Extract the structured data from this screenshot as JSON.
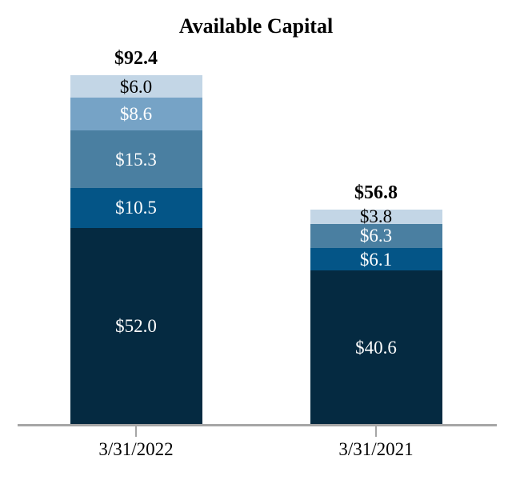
{
  "chart_data": {
    "type": "bar",
    "stacked": true,
    "title": "Available Capital",
    "categories": [
      "3/31/2022",
      "3/31/2021"
    ],
    "value_unit": "$ billions shown as labels",
    "legend": "none",
    "grid": "off",
    "axis_color": "#a6a6a6",
    "ylim": [
      0,
      100
    ],
    "totals": [
      92.4,
      56.8
    ],
    "total_labels": [
      "$92.4",
      "$56.8"
    ],
    "stacks": [
      {
        "category": "3/31/2022",
        "total": 92.4,
        "total_label": "$92.4",
        "segments": [
          {
            "value": 52.0,
            "label": "$52.0",
            "color": "#052a41",
            "label_color": "#ffffff"
          },
          {
            "value": 10.5,
            "label": "$10.5",
            "color": "#045587",
            "label_color": "#ffffff"
          },
          {
            "value": 15.3,
            "label": "$15.3",
            "color": "#4a7fa1",
            "label_color": "#ffffff"
          },
          {
            "value": 8.6,
            "label": "$8.6",
            "color": "#76a3c6",
            "label_color": "#ffffff"
          },
          {
            "value": 6.0,
            "label": "$6.0",
            "color": "#c3d6e6",
            "label_color": "#000000"
          }
        ]
      },
      {
        "category": "3/31/2021",
        "total": 56.8,
        "total_label": "$56.8",
        "segments": [
          {
            "value": 40.6,
            "label": "$40.6",
            "color": "#052a41",
            "label_color": "#ffffff"
          },
          {
            "value": 6.1,
            "label": "$6.1",
            "color": "#045587",
            "label_color": "#ffffff"
          },
          {
            "value": 6.3,
            "label": "$6.3",
            "color": "#4a7fa1",
            "label_color": "#ffffff"
          },
          {
            "value": 3.8,
            "label": "$3.8",
            "color": "#c3d6e6",
            "label_color": "#000000"
          }
        ]
      }
    ]
  }
}
